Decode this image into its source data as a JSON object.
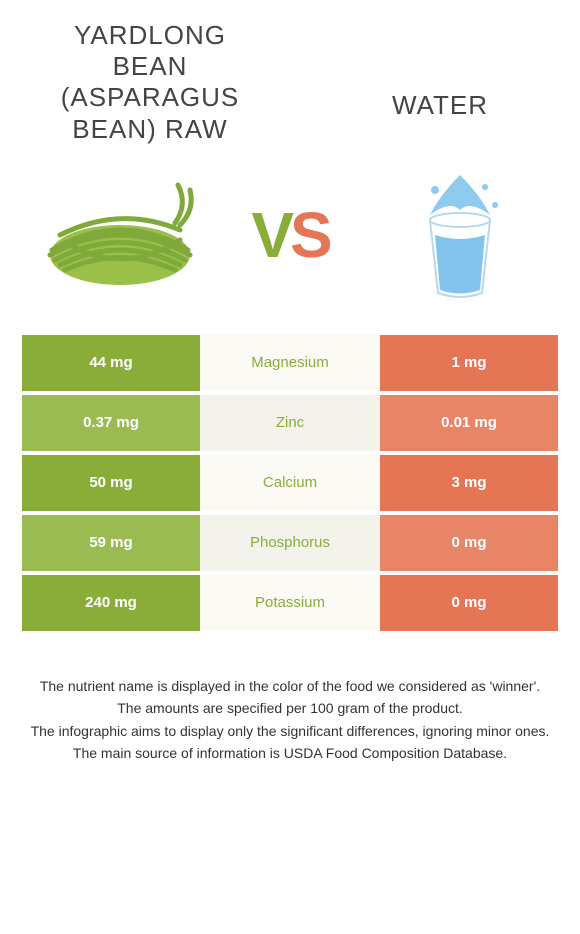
{
  "header": {
    "left_title": "YARDLONG BEAN (ASPARAGUS BEAN) RAW",
    "right_title": "WATER",
    "vs_v": "V",
    "vs_s": "S"
  },
  "colors": {
    "left": "#8aad3a",
    "left_alt": "#9abb52",
    "right": "#e57655",
    "right_alt": "#e88567",
    "mid": "#fbfaf4",
    "mid_alt": "#f3f2eb",
    "winner_text": "#8aad3a"
  },
  "table": {
    "rows": [
      {
        "left": "44 mg",
        "label": "Magnesium",
        "right": "1 mg",
        "winner": "left"
      },
      {
        "left": "0.37 mg",
        "label": "Zinc",
        "right": "0.01 mg",
        "winner": "left"
      },
      {
        "left": "50 mg",
        "label": "Calcium",
        "right": "3 mg",
        "winner": "left"
      },
      {
        "left": "59 mg",
        "label": "Phosphorus",
        "right": "0 mg",
        "winner": "left"
      },
      {
        "left": "240 mg",
        "label": "Potassium",
        "right": "0 mg",
        "winner": "left"
      }
    ]
  },
  "footnotes": [
    "The nutrient name is displayed in the color of the food we considered as 'winner'.",
    "The amounts are specified per 100 gram of the product.",
    "The infographic aims to display only the significant differences, ignoring minor ones.",
    "The main source of information is USDA Food Composition Database."
  ]
}
